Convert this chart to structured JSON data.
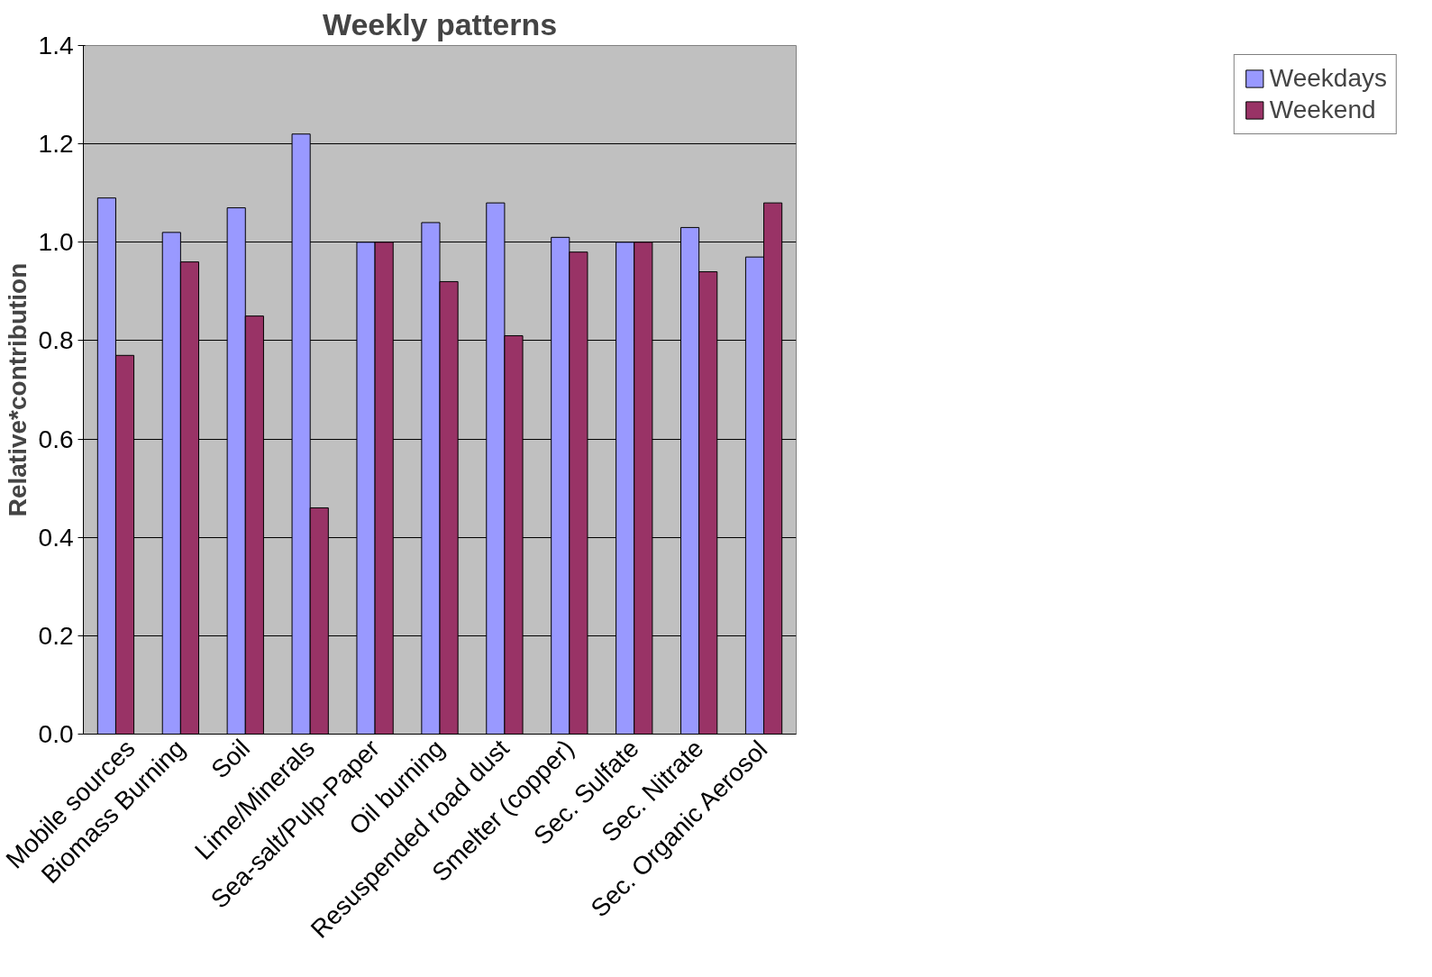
{
  "chart_data": {
    "type": "bar",
    "title": "Weekly patterns",
    "ylabel": "Relative*contribution",
    "categories": [
      "Mobile sources",
      "Biomass Burning",
      "Soil",
      "Lime/Minerals",
      "Sea-salt/Pulp-Paper",
      "Oil burning",
      "Resuspended road dust",
      "Smelter (copper)",
      "Sec. Sulfate",
      "Sec. Nitrate",
      "Sec. Organic Aerosol"
    ],
    "series": [
      {
        "name": "Weekdays",
        "color": "#9999ff",
        "values": [
          1.09,
          1.02,
          1.07,
          1.22,
          1.0,
          1.04,
          1.08,
          1.01,
          1.0,
          1.03,
          0.97
        ]
      },
      {
        "name": "Weekend",
        "color": "#993366",
        "values": [
          0.77,
          0.96,
          0.85,
          0.46,
          1.0,
          0.92,
          0.81,
          0.98,
          1.0,
          0.94,
          1.08
        ]
      }
    ],
    "ylim": [
      0,
      1.4
    ],
    "yticks": [
      {
        "value": 0,
        "label": "0.0"
      },
      {
        "value": 0.2,
        "label": "0.2"
      },
      {
        "value": 0.4,
        "label": "0.4"
      },
      {
        "value": 0.6,
        "label": "0.6"
      },
      {
        "value": 0.8,
        "label": "0.8"
      },
      {
        "value": 1.0,
        "label": "1.0"
      },
      {
        "value": 1.2,
        "label": "1.2"
      },
      {
        "value": 1.4,
        "label": "1.4"
      }
    ],
    "grid": "y",
    "legend": "right"
  }
}
